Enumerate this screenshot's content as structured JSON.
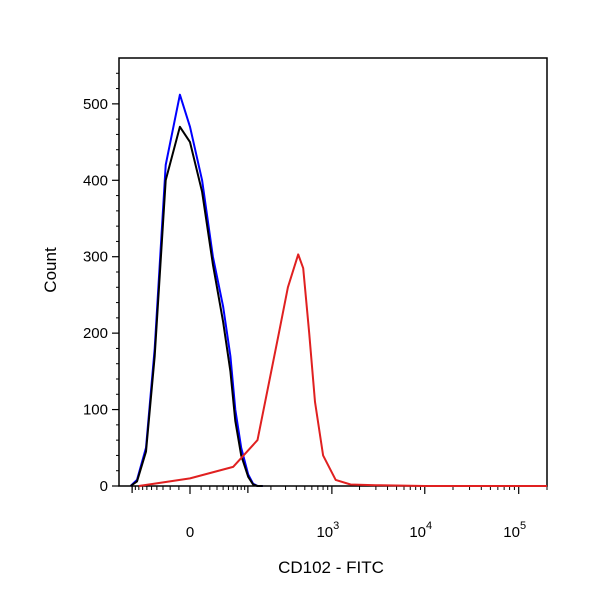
{
  "chart_data": {
    "type": "line",
    "title": "",
    "xlabel": "CD102 - FITC",
    "ylabel": "Count",
    "x_scale": "biexponential",
    "xlim": [
      -150,
      200000
    ],
    "ylim": [
      0,
      560
    ],
    "grid": false,
    "legend": "none",
    "x_ticks": [
      {
        "value": 0,
        "base": "0",
        "exp": ""
      },
      {
        "value": 1000,
        "base": "10",
        "exp": "3"
      },
      {
        "value": 10000,
        "base": "10",
        "exp": "4"
      },
      {
        "value": 100000,
        "base": "10",
        "exp": "5"
      }
    ],
    "y_ticks": [
      0,
      100,
      200,
      300,
      400,
      500
    ],
    "series": [
      {
        "color": "#0000ff",
        "x": [
          -105,
          -85,
          -62,
          -44,
          -26,
          -9,
          0,
          11,
          24,
          40,
          54,
          65,
          80,
          101,
          118,
          135,
          158
        ],
        "y": [
          0,
          8,
          50,
          180,
          420,
          512,
          470,
          400,
          300,
          235,
          170,
          100,
          50,
          15,
          3,
          0,
          0
        ]
      },
      {
        "color": "#000000",
        "x": [
          -105,
          -85,
          -62,
          -44,
          -26,
          -9,
          0,
          11,
          24,
          40,
          54,
          65,
          80,
          101,
          118,
          135,
          158
        ],
        "y": [
          0,
          6,
          45,
          170,
          400,
          470,
          450,
          385,
          290,
          215,
          150,
          85,
          40,
          12,
          2,
          0,
          0
        ]
      },
      {
        "color": "#e02020",
        "x": [
          -80,
          0,
          60,
          135,
          250,
          320,
          420,
          480,
          560,
          650,
          800,
          1100,
          1600,
          3000,
          10000,
          200000
        ],
        "y": [
          0,
          10,
          25,
          60,
          200,
          260,
          303,
          285,
          200,
          110,
          40,
          8,
          2,
          1,
          0,
          0
        ]
      }
    ]
  }
}
